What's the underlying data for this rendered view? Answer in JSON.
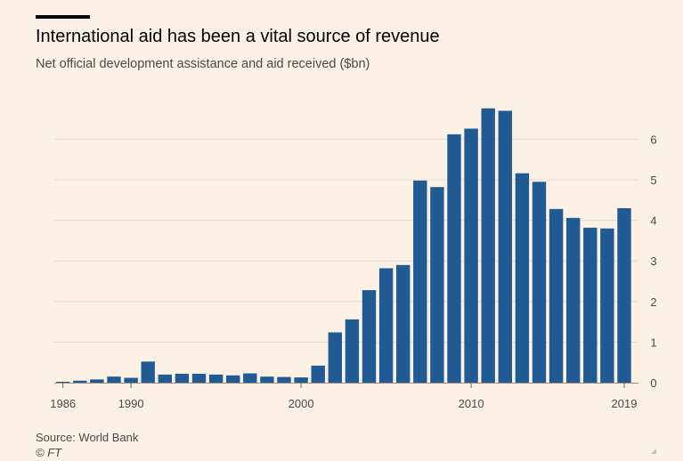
{
  "header": {
    "title": "International aid has been a vital source of revenue",
    "subtitle": "Net official development assistance and aid received ($bn)"
  },
  "footer": {
    "source": "Source: World Bank",
    "credit": "© FT"
  },
  "colors": {
    "background": "#fdf1e6",
    "bar": "#215b94",
    "gridline": "#e6d9ce",
    "text": "#4d4845"
  },
  "chart_data": {
    "type": "bar",
    "title": "International aid has been a vital source of revenue",
    "subtitle": "Net official development assistance and aid received ($bn)",
    "xlabel": "",
    "ylabel": "",
    "ylim": [
      0,
      7
    ],
    "y_ticks": [
      0,
      1,
      2,
      3,
      4,
      5,
      6
    ],
    "y_axis_side": "right",
    "grid": true,
    "x_tick_labels": [
      "1986",
      "1990",
      "2000",
      "2010",
      "2019"
    ],
    "categories": [
      "1986",
      "1987",
      "1988",
      "1989",
      "1990",
      "1991",
      "1992",
      "1993",
      "1994",
      "1995",
      "1996",
      "1997",
      "1998",
      "1999",
      "2000",
      "2001",
      "2002",
      "2003",
      "2004",
      "2005",
      "2006",
      "2007",
      "2008",
      "2009",
      "2010",
      "2011",
      "2012",
      "2013",
      "2014",
      "2015",
      "2016",
      "2017",
      "2018",
      "2019"
    ],
    "values": [
      0.01,
      0.05,
      0.08,
      0.15,
      0.12,
      0.52,
      0.2,
      0.22,
      0.22,
      0.2,
      0.18,
      0.23,
      0.15,
      0.14,
      0.13,
      0.42,
      1.24,
      1.56,
      2.28,
      2.82,
      2.9,
      4.98,
      4.82,
      6.12,
      6.26,
      6.76,
      6.7,
      5.16,
      4.95,
      4.28,
      4.06,
      3.82,
      3.8,
      4.3
    ]
  }
}
